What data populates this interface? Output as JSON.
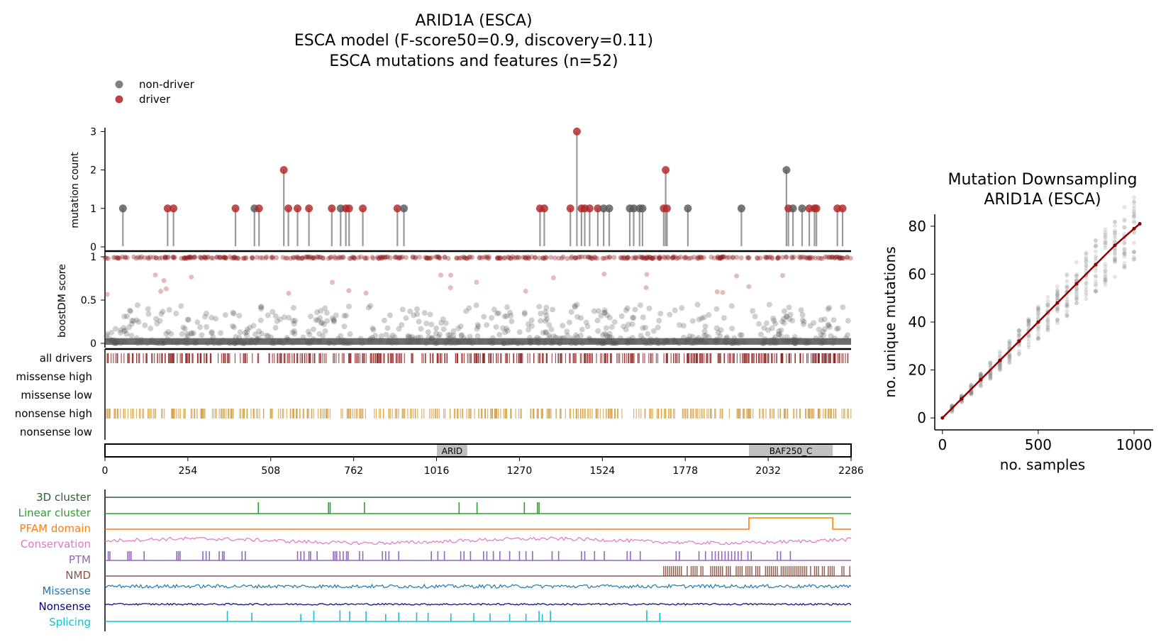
{
  "figure": {
    "title_lines": [
      "ARID1A (ESCA)",
      "ESCA model (F-score50=0.9, discovery=0.11)",
      "ESCA mutations and features (n=52)"
    ]
  },
  "colors": {
    "driver": "#b22222",
    "non_driver": "#555555",
    "driver_bar": "#8b1a1a",
    "nonsense_bar": "#d4a040",
    "cluster3d": "#2e5e2e",
    "linear": "#2ca02c",
    "pfam": "#ff7f0e",
    "conservation": "#e377c2",
    "ptm": "#9467bd",
    "nmd": "#8c564b",
    "missense": "#1f77b4",
    "nonsense": "#000080",
    "splicing": "#17becf",
    "domain_fill": "#c0c0c0",
    "regline": "#8b0000"
  },
  "chart_data": [
    {
      "type": "scatter",
      "subtype": "lollipop",
      "legend": {
        "entries": [
          "non-driver",
          "driver"
        ],
        "placement": "top-left"
      },
      "ylabel": "mutation count",
      "ylim": [
        0,
        3.1
      ],
      "yticks": [
        0,
        1,
        2,
        3
      ],
      "xlim": [
        0,
        2286
      ],
      "mutations": [
        {
          "pos": 55,
          "count": 1,
          "driver": false
        },
        {
          "pos": 192,
          "count": 1,
          "driver": true
        },
        {
          "pos": 210,
          "count": 1,
          "driver": true
        },
        {
          "pos": 400,
          "count": 1,
          "driver": true
        },
        {
          "pos": 458,
          "count": 1,
          "driver": false
        },
        {
          "pos": 472,
          "count": 1,
          "driver": true
        },
        {
          "pos": 548,
          "count": 2,
          "driver": true
        },
        {
          "pos": 562,
          "count": 1,
          "driver": true
        },
        {
          "pos": 590,
          "count": 1,
          "driver": true
        },
        {
          "pos": 625,
          "count": 1,
          "driver": true
        },
        {
          "pos": 695,
          "count": 1,
          "driver": true
        },
        {
          "pos": 722,
          "count": 1,
          "driver": false
        },
        {
          "pos": 738,
          "count": 1,
          "driver": true
        },
        {
          "pos": 748,
          "count": 1,
          "driver": true
        },
        {
          "pos": 790,
          "count": 1,
          "driver": true
        },
        {
          "pos": 896,
          "count": 1,
          "driver": true
        },
        {
          "pos": 916,
          "count": 1,
          "driver": false
        },
        {
          "pos": 1333,
          "count": 1,
          "driver": true
        },
        {
          "pos": 1346,
          "count": 1,
          "driver": true
        },
        {
          "pos": 1426,
          "count": 1,
          "driver": true
        },
        {
          "pos": 1446,
          "count": 3,
          "driver": true
        },
        {
          "pos": 1460,
          "count": 1,
          "driver": true
        },
        {
          "pos": 1470,
          "count": 1,
          "driver": true
        },
        {
          "pos": 1485,
          "count": 1,
          "driver": true
        },
        {
          "pos": 1510,
          "count": 1,
          "driver": true
        },
        {
          "pos": 1528,
          "count": 1,
          "driver": false
        },
        {
          "pos": 1545,
          "count": 1,
          "driver": false
        },
        {
          "pos": 1608,
          "count": 1,
          "driver": false
        },
        {
          "pos": 1620,
          "count": 1,
          "driver": false
        },
        {
          "pos": 1638,
          "count": 1,
          "driver": false
        },
        {
          "pos": 1647,
          "count": 1,
          "driver": false
        },
        {
          "pos": 1712,
          "count": 1,
          "driver": true
        },
        {
          "pos": 1718,
          "count": 2,
          "driver": true
        },
        {
          "pos": 1722,
          "count": 1,
          "driver": true
        },
        {
          "pos": 1786,
          "count": 1,
          "driver": false
        },
        {
          "pos": 1950,
          "count": 1,
          "driver": false
        },
        {
          "pos": 2088,
          "count": 2,
          "driver": false
        },
        {
          "pos": 2094,
          "count": 1,
          "driver": true
        },
        {
          "pos": 2108,
          "count": 1,
          "driver": false
        },
        {
          "pos": 2136,
          "count": 1,
          "driver": false
        },
        {
          "pos": 2158,
          "count": 1,
          "driver": true
        },
        {
          "pos": 2174,
          "count": 1,
          "driver": true
        },
        {
          "pos": 2180,
          "count": 1,
          "driver": true
        },
        {
          "pos": 2244,
          "count": 1,
          "driver": true
        },
        {
          "pos": 2260,
          "count": 1,
          "driver": true
        }
      ]
    },
    {
      "type": "scatter",
      "ylabel": "boostDM score",
      "ylim": [
        0,
        1
      ],
      "yticks": [
        0,
        0.5,
        1
      ],
      "xlim": [
        0,
        2286
      ],
      "note": "dense per-position score cloud: most near 0, drivers near 1"
    },
    {
      "type": "heatmap",
      "tracks": [
        "all drivers",
        "missense high",
        "missense low",
        "nonsense high",
        "nonsense low"
      ]
    },
    {
      "type": "bar",
      "domains": [
        {
          "name": "ARID",
          "start": 1017,
          "end": 1110
        },
        {
          "name": "BAF250_C",
          "start": 1973,
          "end": 2230
        }
      ],
      "xticks": [
        0,
        254,
        508,
        762,
        1016,
        1270,
        1524,
        1778,
        2032,
        2286
      ],
      "xlim": [
        0,
        2286
      ]
    },
    {
      "type": "line",
      "tracks": [
        "3D cluster",
        "Linear cluster",
        "PFAM domain",
        "Conservation",
        "PTM",
        "NMD",
        "Missense",
        "Nonsense",
        "Splicing"
      ],
      "linear_cluster_peaks": [
        470,
        685,
        690,
        795,
        1085,
        1140,
        1285,
        1325,
        1330
      ],
      "pfam_range": [
        1973,
        2230
      ],
      "ptm_positions": [
        10,
        15,
        70,
        75,
        80,
        120,
        220,
        225,
        230,
        300,
        310,
        320,
        350,
        360,
        365,
        420,
        430,
        590,
        600,
        610,
        625,
        630,
        650,
        700,
        705,
        710,
        720,
        730,
        740,
        745,
        780,
        790,
        850,
        860,
        870,
        900,
        1000,
        1020,
        1040,
        1090,
        1100,
        1120,
        1160,
        1170,
        1190,
        1210,
        1240,
        1270,
        1290,
        1310,
        1370,
        1390,
        1460,
        1470,
        1500,
        1530,
        1600,
        1610,
        1640,
        1750,
        1760,
        1820,
        1840,
        1860,
        1870,
        1880,
        1890,
        1900,
        1910,
        1920,
        1930,
        1940,
        1950,
        1970,
        1980,
        2060,
        2070,
        2100
      ],
      "nmd_range": [
        1712,
        2286
      ],
      "splicing_positions": [
        375,
        450,
        600,
        640,
        720,
        750,
        800,
        860,
        900,
        955,
        990,
        1060,
        1130,
        1180,
        1240,
        1290,
        1330,
        1340,
        1365,
        1660,
        1700
      ]
    },
    {
      "type": "scatter",
      "title_lines": [
        "Mutation Downsampling",
        "ARID1A (ESCA)"
      ],
      "xlabel": "no. samples",
      "ylabel": "no. unique mutations",
      "xlim": [
        -40,
        1100
      ],
      "ylim": [
        -5,
        85
      ],
      "xticks": [
        0,
        500,
        1000
      ],
      "yticks": [
        0,
        20,
        40,
        60,
        80
      ],
      "series": [
        {
          "x": [
            0,
            100,
            200,
            300,
            400,
            500,
            600,
            700,
            800,
            900,
            1000,
            1030
          ],
          "y": [
            0,
            8,
            16,
            24,
            32,
            40,
            48,
            56,
            64,
            72,
            79,
            81
          ]
        }
      ]
    }
  ]
}
